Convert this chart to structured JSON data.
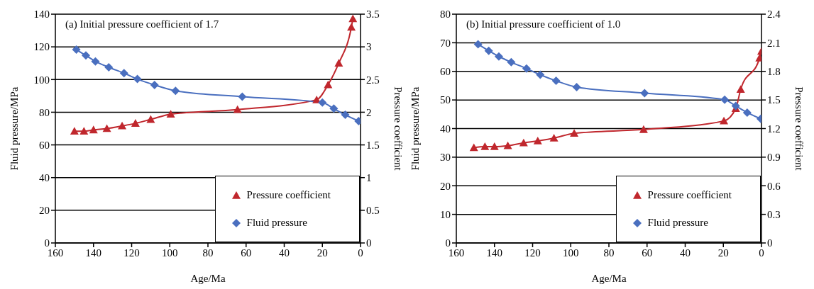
{
  "chart_data": [
    {
      "type": "line",
      "annotations": [
        "(a) Initial pressure coefficient of 1.7"
      ],
      "xlabel": "Age/Ma",
      "ylabel": "Fluid pressure/MPa",
      "y2label": "Pressure coefficient",
      "xlim": [
        160,
        0
      ],
      "xticks": [
        160,
        140,
        120,
        100,
        80,
        60,
        40,
        20,
        0
      ],
      "ylim": [
        0,
        140
      ],
      "yticks": [
        0,
        20,
        40,
        60,
        80,
        100,
        120,
        140
      ],
      "y2lim": [
        0,
        3.5
      ],
      "y2ticks": [
        0,
        0.5,
        1,
        1.5,
        2,
        2.5,
        3,
        3.5
      ],
      "grid": "y",
      "legend": "bottom right",
      "line_style": "solid",
      "series": [
        {
          "name": "Pressure coefficient",
          "color": "#c0272d",
          "axis": "y2",
          "marker": "triangle",
          "x": [
            150,
            145,
            140,
            133,
            125,
            118,
            110,
            99.5,
            64.5,
            23,
            17,
            11.4,
            4.8,
            4
          ],
          "values": [
            1.71,
            1.71,
            1.73,
            1.75,
            1.79,
            1.83,
            1.89,
            1.97,
            2.04,
            2.19,
            2.42,
            2.75,
            3.3,
            3.43
          ]
        },
        {
          "name": "Fluid pressure",
          "color": "#4a6fbf",
          "axis": "y",
          "marker": "diamond",
          "x": [
            149,
            144,
            139,
            132,
            124,
            117,
            108,
            97,
            62,
            20,
            14,
            8,
            1
          ],
          "values": [
            118.3,
            114.7,
            111.1,
            107.5,
            103.9,
            100.3,
            96.7,
            93.1,
            89.5,
            85.9,
            82.2,
            78.4,
            74.6
          ]
        }
      ]
    },
    {
      "type": "line",
      "annotations": [
        "(b) Initial pressure coefficient of 1.0"
      ],
      "xlabel": "Age/Ma",
      "ylabel": "Fluid pressure/MPa",
      "y2label": "Pressure coefficient",
      "xlim": [
        160,
        0
      ],
      "xticks": [
        160,
        140,
        120,
        100,
        80,
        60,
        40,
        20,
        0
      ],
      "ylim": [
        0,
        80
      ],
      "yticks": [
        0,
        10,
        20,
        30,
        40,
        50,
        60,
        70,
        80
      ],
      "y2lim": [
        0,
        2.4
      ],
      "y2ticks": [
        0,
        0.3,
        0.6,
        0.9,
        1.2,
        1.5,
        1.8,
        2.1,
        2.4
      ],
      "grid": "y",
      "legend": "bottom right",
      "line_style": "solid",
      "series": [
        {
          "name": "Pressure coefficient",
          "color": "#c0272d",
          "axis": "y2",
          "marker": "triangle",
          "x": [
            150.8,
            145,
            140,
            133,
            124.7,
            117.3,
            108.8,
            98.2,
            61.8,
            19.7,
            13.5,
            10.9,
            1,
            0
          ],
          "values": [
            1.0,
            1.01,
            1.01,
            1.02,
            1.05,
            1.07,
            1.1,
            1.15,
            1.19,
            1.28,
            1.41,
            1.61,
            1.94,
            2.01
          ]
        },
        {
          "name": "Fluid pressure",
          "color": "#4a6fbf",
          "axis": "y",
          "marker": "diamond",
          "x": [
            148.6,
            143,
            137.7,
            131.2,
            123.2,
            116,
            107.7,
            96.9,
            61.3,
            19.3,
            13.5,
            7.5,
            0.4
          ],
          "values": [
            69.5,
            67.2,
            65.2,
            63.2,
            61,
            58.8,
            56.7,
            54.5,
            52.4,
            50.1,
            47.9,
            45.6,
            43.4
          ]
        }
      ]
    }
  ]
}
